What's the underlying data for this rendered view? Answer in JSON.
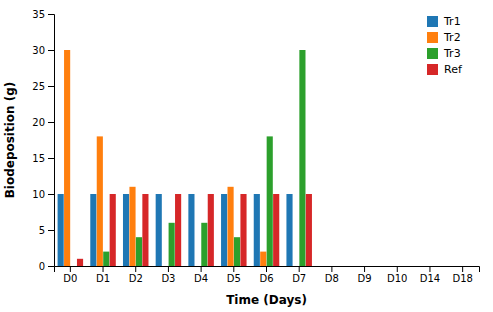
{
  "chart_data": {
    "type": "bar",
    "xlabel": "Time (Days)",
    "ylabel": "Biodeposition (g)",
    "categories": [
      "D0",
      "D1",
      "D2",
      "D3",
      "D4",
      "D5",
      "D6",
      "D7",
      "D8",
      "D9",
      "D10",
      "D14",
      "D18"
    ],
    "series": [
      {
        "name": "Tr1",
        "values": [
          10,
          10,
          10,
          10,
          10,
          10,
          10,
          10,
          0,
          0,
          0,
          0,
          0
        ]
      },
      {
        "name": "Tr2",
        "values": [
          30,
          18,
          11,
          0,
          0,
          11,
          2,
          0,
          0,
          0,
          0,
          0,
          0
        ]
      },
      {
        "name": "Tr3",
        "values": [
          0,
          2,
          4,
          6,
          6,
          4,
          18,
          30,
          0,
          0,
          0,
          0,
          0
        ]
      },
      {
        "name": "Ref",
        "values": [
          1,
          10,
          10,
          10,
          10,
          10,
          10,
          10,
          0,
          0,
          0,
          0,
          0
        ]
      }
    ],
    "ylim": [
      0,
      35
    ],
    "yticks": [
      0,
      5,
      10,
      15,
      20,
      25,
      30,
      35
    ],
    "grid": false,
    "legend": "upper right"
  }
}
